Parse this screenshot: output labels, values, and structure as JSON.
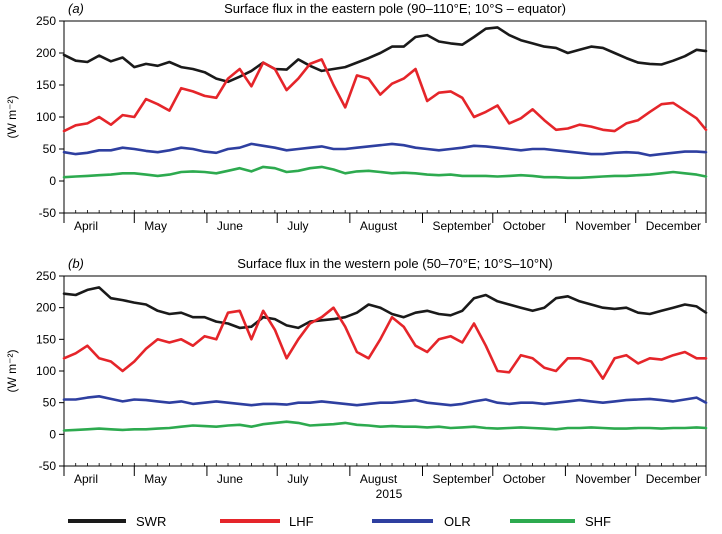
{
  "chart_data": [
    {
      "type": "line",
      "panel": "(a)",
      "title": "Surface flux in the eastern pole (90–110°E; 10°S – equator)",
      "ylabel": "(W m⁻²)",
      "ylim": [
        -50,
        250
      ],
      "yticks": [
        -50,
        0,
        50,
        100,
        150,
        200,
        250
      ],
      "categories": [
        "April",
        "May",
        "June",
        "July",
        "August",
        "September",
        "October",
        "November",
        "December"
      ],
      "x": [
        0,
        5,
        10,
        15,
        20,
        25,
        30,
        35,
        40,
        45,
        50,
        55,
        60,
        65,
        70,
        75,
        80,
        85,
        90,
        95,
        100,
        105,
        110,
        115,
        120,
        125,
        130,
        135,
        140,
        145,
        150,
        155,
        160,
        165,
        170,
        175,
        180,
        185,
        190,
        195,
        200,
        205,
        210,
        215,
        220,
        225,
        230,
        235,
        240,
        245,
        250,
        255,
        260,
        265,
        270,
        274
      ],
      "series": [
        {
          "name": "SWR",
          "color": "#1a1a1a",
          "values": [
            197,
            188,
            186,
            196,
            187,
            193,
            178,
            183,
            180,
            186,
            178,
            175,
            170,
            160,
            155,
            163,
            172,
            185,
            175,
            174,
            190,
            180,
            172,
            175,
            178,
            185,
            192,
            200,
            210,
            210,
            225,
            228,
            218,
            215,
            213,
            225,
            238,
            240,
            228,
            220,
            215,
            210,
            208,
            200,
            205,
            210,
            208,
            200,
            192,
            185,
            183,
            182,
            188,
            195,
            205,
            203
          ]
        },
        {
          "name": "LHF",
          "color": "#e5252a",
          "values": [
            78,
            87,
            90,
            100,
            88,
            103,
            100,
            128,
            120,
            110,
            145,
            140,
            133,
            130,
            160,
            175,
            148,
            185,
            175,
            142,
            160,
            183,
            190,
            150,
            115,
            165,
            160,
            135,
            152,
            160,
            175,
            125,
            138,
            140,
            130,
            100,
            108,
            118,
            90,
            98,
            112,
            95,
            80,
            82,
            88,
            85,
            80,
            78,
            90,
            95,
            108,
            120,
            122,
            110,
            98,
            80
          ]
        },
        {
          "name": "OLR",
          "color": "#2e3fa0",
          "values": [
            45,
            42,
            44,
            48,
            48,
            52,
            50,
            47,
            45,
            48,
            52,
            50,
            46,
            44,
            50,
            52,
            58,
            55,
            52,
            48,
            50,
            52,
            54,
            50,
            50,
            52,
            54,
            56,
            58,
            56,
            52,
            50,
            48,
            50,
            52,
            55,
            54,
            52,
            50,
            48,
            50,
            50,
            48,
            46,
            44,
            42,
            42,
            44,
            45,
            44,
            40,
            42,
            44,
            46,
            46,
            45
          ]
        },
        {
          "name": "SHF",
          "color": "#2daa4f",
          "values": [
            6,
            7,
            8,
            9,
            10,
            12,
            12,
            10,
            8,
            10,
            14,
            15,
            14,
            12,
            16,
            20,
            15,
            22,
            20,
            14,
            16,
            20,
            22,
            18,
            12,
            15,
            16,
            14,
            12,
            13,
            12,
            10,
            9,
            10,
            8,
            8,
            8,
            7,
            8,
            9,
            8,
            6,
            6,
            5,
            5,
            6,
            7,
            8,
            8,
            9,
            10,
            12,
            14,
            12,
            10,
            7
          ]
        }
      ]
    },
    {
      "type": "line",
      "panel": "(b)",
      "title": "Surface flux in the western pole (50–70°E; 10°S–10°N)",
      "ylabel": "(W m⁻²)",
      "xlabel": "2015",
      "ylim": [
        -50,
        250
      ],
      "yticks": [
        -50,
        0,
        50,
        100,
        150,
        200,
        250
      ],
      "categories": [
        "April",
        "May",
        "June",
        "July",
        "August",
        "September",
        "October",
        "November",
        "December"
      ],
      "x": [
        0,
        5,
        10,
        15,
        20,
        25,
        30,
        35,
        40,
        45,
        50,
        55,
        60,
        65,
        70,
        75,
        80,
        85,
        90,
        95,
        100,
        105,
        110,
        115,
        120,
        125,
        130,
        135,
        140,
        145,
        150,
        155,
        160,
        165,
        170,
        175,
        180,
        185,
        190,
        195,
        200,
        205,
        210,
        215,
        220,
        225,
        230,
        235,
        240,
        245,
        250,
        255,
        260,
        265,
        270,
        274
      ],
      "series": [
        {
          "name": "SWR",
          "color": "#1a1a1a",
          "values": [
            222,
            220,
            228,
            232,
            215,
            212,
            208,
            205,
            195,
            190,
            192,
            185,
            185,
            178,
            175,
            168,
            170,
            185,
            182,
            172,
            168,
            178,
            180,
            182,
            185,
            192,
            205,
            200,
            190,
            185,
            192,
            195,
            190,
            188,
            195,
            215,
            220,
            210,
            205,
            200,
            195,
            200,
            215,
            218,
            210,
            205,
            200,
            198,
            200,
            192,
            190,
            195,
            200,
            205,
            202,
            192
          ]
        },
        {
          "name": "LHF",
          "color": "#e5252a",
          "values": [
            120,
            128,
            140,
            120,
            115,
            100,
            115,
            135,
            150,
            145,
            150,
            140,
            155,
            150,
            192,
            195,
            150,
            195,
            165,
            120,
            150,
            175,
            185,
            200,
            170,
            130,
            120,
            150,
            185,
            170,
            140,
            130,
            150,
            155,
            145,
            175,
            140,
            100,
            98,
            125,
            120,
            105,
            100,
            120,
            120,
            115,
            88,
            120,
            125,
            112,
            120,
            118,
            125,
            130,
            120,
            120
          ]
        },
        {
          "name": "OLR",
          "color": "#2e3fa0",
          "values": [
            55,
            55,
            58,
            60,
            56,
            52,
            55,
            54,
            52,
            50,
            52,
            48,
            50,
            52,
            50,
            48,
            46,
            48,
            48,
            47,
            50,
            50,
            52,
            50,
            48,
            46,
            48,
            50,
            50,
            52,
            54,
            50,
            48,
            46,
            48,
            52,
            55,
            50,
            48,
            50,
            50,
            48,
            50,
            52,
            54,
            52,
            50,
            52,
            54,
            55,
            56,
            54,
            52,
            55,
            58,
            50
          ]
        },
        {
          "name": "SHF",
          "color": "#2daa4f",
          "values": [
            6,
            7,
            8,
            9,
            8,
            7,
            8,
            8,
            9,
            10,
            12,
            14,
            13,
            12,
            14,
            15,
            12,
            16,
            18,
            20,
            18,
            14,
            15,
            16,
            18,
            15,
            14,
            12,
            13,
            12,
            12,
            11,
            12,
            10,
            11,
            12,
            10,
            9,
            10,
            11,
            10,
            9,
            8,
            10,
            10,
            11,
            10,
            9,
            9,
            10,
            10,
            9,
            10,
            10,
            11,
            10
          ]
        }
      ]
    }
  ],
  "legend": [
    {
      "label": "SWR",
      "color": "#1a1a1a"
    },
    {
      "label": "LHF",
      "color": "#e5252a"
    },
    {
      "label": "OLR",
      "color": "#2e3fa0"
    },
    {
      "label": "SHF",
      "color": "#2daa4f"
    }
  ]
}
